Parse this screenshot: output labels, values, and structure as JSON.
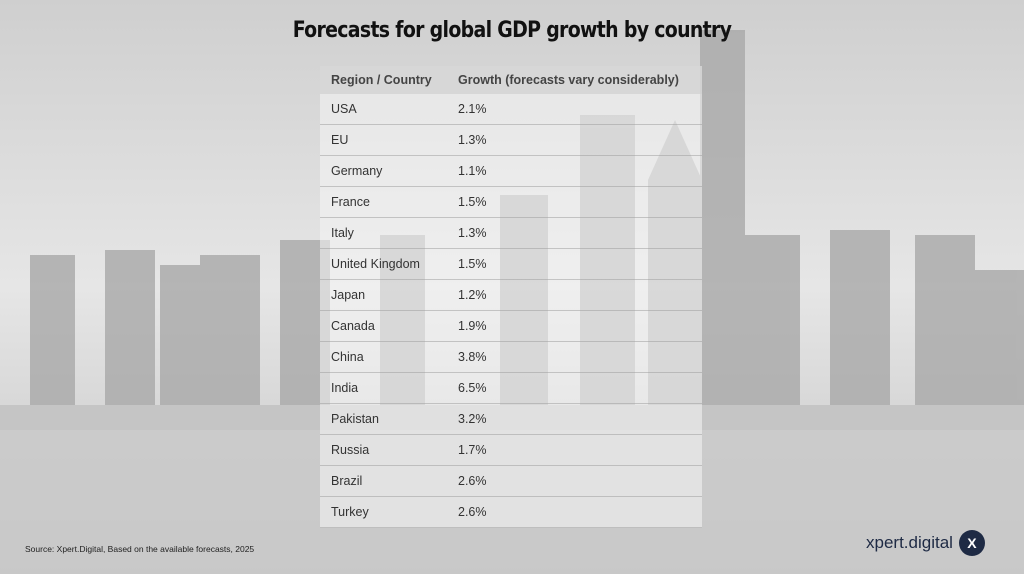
{
  "header": {
    "title": "Forecasts for global GDP growth by country"
  },
  "table": {
    "columns": [
      "Region / Country",
      "Growth (forecasts vary considerably)"
    ],
    "rows": [
      [
        "USA",
        "2.1%"
      ],
      [
        "EU",
        "1.3%"
      ],
      [
        "Germany",
        "1.1%"
      ],
      [
        "France",
        "1.5%"
      ],
      [
        "Italy",
        "1.3%"
      ],
      [
        "United Kingdom",
        "1.5%"
      ],
      [
        "Japan",
        "1.2%"
      ],
      [
        "Canada",
        "1.9%"
      ],
      [
        "China",
        "3.8%"
      ],
      [
        "India",
        "6.5%"
      ],
      [
        "Pakistan",
        "3.2%"
      ],
      [
        "Russia",
        "1.7%"
      ],
      [
        "Brazil",
        "2.6%"
      ],
      [
        "Turkey",
        "2.6%"
      ]
    ]
  },
  "footer": {
    "source": "Source: Xpert.Digital, Based on the available forecasts, 2025"
  },
  "logo": {
    "text": "xpert.digital",
    "icon": "X"
  }
}
